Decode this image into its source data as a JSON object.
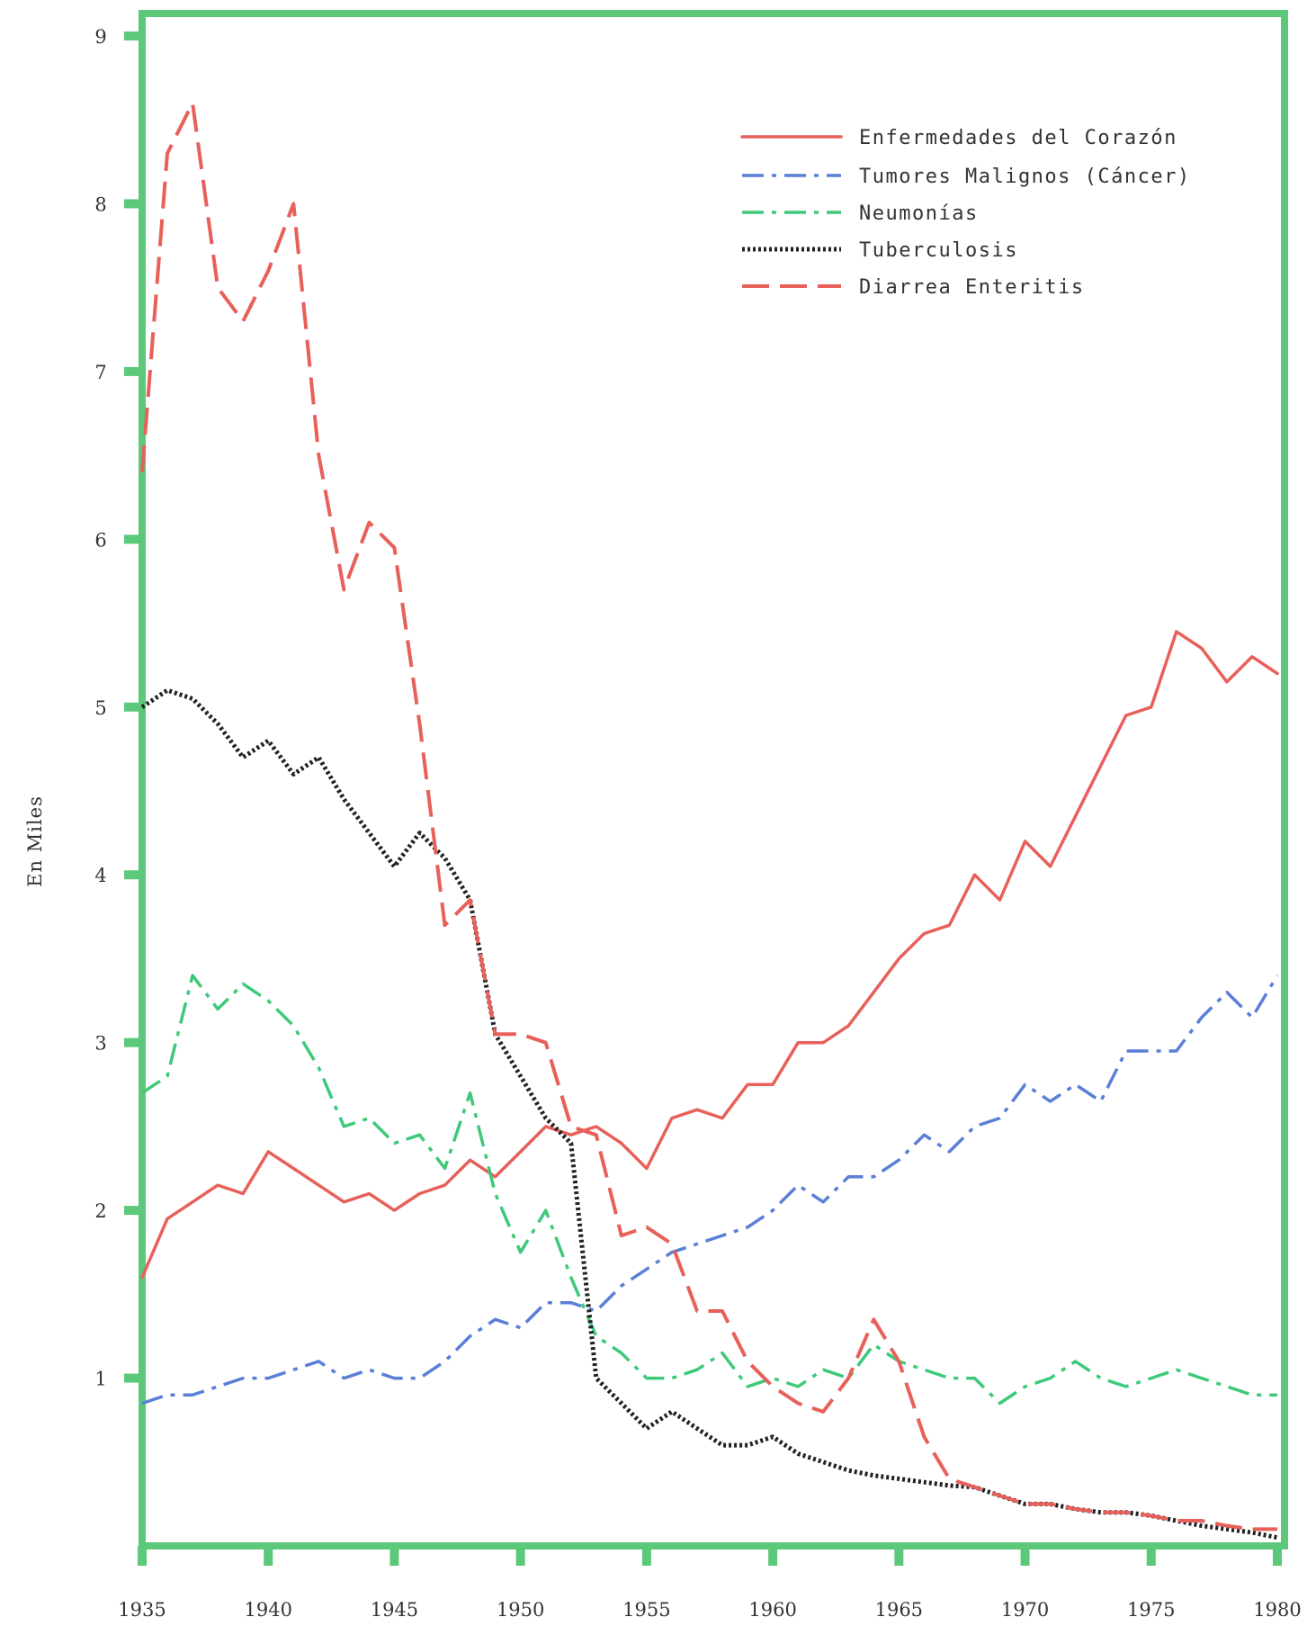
{
  "chart_data": {
    "type": "line",
    "ylabel": "En Miles",
    "xlim": [
      1935,
      1980
    ],
    "ylim": [
      0,
      9
    ],
    "x_ticks": [
      1935,
      1940,
      1945,
      1950,
      1955,
      1960,
      1965,
      1970,
      1975,
      1980
    ],
    "y_ticks": [
      1,
      2,
      3,
      4,
      5,
      6,
      7,
      8,
      9
    ],
    "frame_color": "#5cc87a",
    "legend_position": "top-right",
    "series": [
      {
        "name": "Enfermedades del Corazón",
        "color": "#e8605a",
        "style": "solid",
        "x": [
          1935,
          1936,
          1937,
          1938,
          1939,
          1940,
          1941,
          1942,
          1943,
          1944,
          1945,
          1946,
          1947,
          1948,
          1949,
          1950,
          1951,
          1952,
          1953,
          1954,
          1955,
          1956,
          1957,
          1958,
          1959,
          1960,
          1961,
          1962,
          1963,
          1964,
          1965,
          1966,
          1967,
          1968,
          1969,
          1970,
          1971,
          1972,
          1973,
          1974,
          1975,
          1976,
          1977,
          1978,
          1979,
          1980
        ],
        "values": [
          1.6,
          1.95,
          2.05,
          2.15,
          2.1,
          2.35,
          2.25,
          2.15,
          2.05,
          2.1,
          2.0,
          2.1,
          2.15,
          2.3,
          2.2,
          2.35,
          2.5,
          2.45,
          2.5,
          2.4,
          2.25,
          2.55,
          2.6,
          2.55,
          2.75,
          2.75,
          3.0,
          3.0,
          3.1,
          3.3,
          3.5,
          3.65,
          3.7,
          4.0,
          3.85,
          4.2,
          4.05,
          4.35,
          4.65,
          4.95,
          5.0,
          5.45,
          5.35,
          5.15,
          5.3,
          5.2
        ]
      },
      {
        "name": "Tumores Malignos (Cáncer)",
        "color": "#5a7fd6",
        "style": "dashdot",
        "x": [
          1935,
          1936,
          1937,
          1938,
          1939,
          1940,
          1941,
          1942,
          1943,
          1944,
          1945,
          1946,
          1947,
          1948,
          1949,
          1950,
          1951,
          1952,
          1953,
          1954,
          1955,
          1956,
          1957,
          1958,
          1959,
          1960,
          1961,
          1962,
          1963,
          1964,
          1965,
          1966,
          1967,
          1968,
          1969,
          1970,
          1971,
          1972,
          1973,
          1974,
          1975,
          1976,
          1977,
          1978,
          1979,
          1980
        ],
        "values": [
          0.85,
          0.9,
          0.9,
          0.95,
          1.0,
          1.0,
          1.05,
          1.1,
          1.0,
          1.05,
          1.0,
          1.0,
          1.1,
          1.25,
          1.35,
          1.3,
          1.45,
          1.45,
          1.4,
          1.55,
          1.65,
          1.75,
          1.8,
          1.85,
          1.9,
          2.0,
          2.15,
          2.05,
          2.2,
          2.2,
          2.3,
          2.45,
          2.35,
          2.5,
          2.55,
          2.75,
          2.65,
          2.75,
          2.65,
          2.95,
          2.95,
          2.95,
          3.15,
          3.3,
          3.15,
          3.4
        ]
      },
      {
        "name": "Neumonías",
        "color": "#3ec97a",
        "style": "dashdot",
        "x": [
          1935,
          1936,
          1937,
          1938,
          1939,
          1940,
          1941,
          1942,
          1943,
          1944,
          1945,
          1946,
          1947,
          1948,
          1949,
          1950,
          1951,
          1952,
          1953,
          1954,
          1955,
          1956,
          1957,
          1958,
          1959,
          1960,
          1961,
          1962,
          1963,
          1964,
          1965,
          1966,
          1967,
          1968,
          1969,
          1970,
          1971,
          1972,
          1973,
          1974,
          1975,
          1976,
          1977,
          1978,
          1979,
          1980
        ],
        "values": [
          2.7,
          2.8,
          3.4,
          3.2,
          3.35,
          3.25,
          3.1,
          2.85,
          2.5,
          2.55,
          2.4,
          2.45,
          2.25,
          2.7,
          2.1,
          1.75,
          2.0,
          1.6,
          1.25,
          1.15,
          1.0,
          1.0,
          1.05,
          1.15,
          0.95,
          1.0,
          0.95,
          1.05,
          1.0,
          1.2,
          1.1,
          1.05,
          1.0,
          1.0,
          0.85,
          0.95,
          1.0,
          1.1,
          1.0,
          0.95,
          1.0,
          1.05,
          1.0,
          0.95,
          0.9,
          0.9
        ]
      },
      {
        "name": "Tuberculosis",
        "color": "#222222",
        "style": "dotted",
        "x": [
          1935,
          1936,
          1937,
          1938,
          1939,
          1940,
          1941,
          1942,
          1943,
          1944,
          1945,
          1946,
          1947,
          1948,
          1949,
          1950,
          1951,
          1952,
          1953,
          1954,
          1955,
          1956,
          1957,
          1958,
          1959,
          1960,
          1961,
          1962,
          1963,
          1964,
          1965,
          1966,
          1967,
          1968,
          1969,
          1970,
          1971,
          1972,
          1973,
          1974,
          1975,
          1976,
          1977,
          1978,
          1979,
          1980
        ],
        "values": [
          5.0,
          5.1,
          5.05,
          4.9,
          4.7,
          4.8,
          4.6,
          4.7,
          4.45,
          4.25,
          4.05,
          4.25,
          4.1,
          3.85,
          3.05,
          2.8,
          2.55,
          2.4,
          1.0,
          0.85,
          0.7,
          0.8,
          0.7,
          0.6,
          0.6,
          0.65,
          0.55,
          0.5,
          0.45,
          0.42,
          0.4,
          0.38,
          0.36,
          0.35,
          0.3,
          0.25,
          0.25,
          0.22,
          0.2,
          0.2,
          0.18,
          0.15,
          0.12,
          0.1,
          0.08,
          0.05
        ]
      },
      {
        "name": "Diarrea Enteritis",
        "color": "#e8605a",
        "style": "dashed",
        "x": [
          1935,
          1936,
          1937,
          1938,
          1939,
          1940,
          1941,
          1942,
          1943,
          1944,
          1945,
          1946,
          1947,
          1948,
          1949,
          1950,
          1951,
          1952,
          1953,
          1954,
          1955,
          1956,
          1957,
          1958,
          1959,
          1960,
          1961,
          1962,
          1963,
          1964,
          1965,
          1966,
          1967,
          1968,
          1969,
          1970,
          1971,
          1972,
          1973,
          1974,
          1975,
          1976,
          1977,
          1978,
          1979,
          1980
        ],
        "values": [
          6.4,
          8.3,
          8.6,
          7.5,
          7.3,
          7.6,
          8.0,
          6.5,
          5.7,
          6.1,
          5.95,
          4.9,
          3.7,
          3.85,
          3.05,
          3.05,
          3.0,
          2.5,
          2.45,
          1.85,
          1.9,
          1.8,
          1.4,
          1.4,
          1.1,
          0.95,
          0.85,
          0.8,
          1.0,
          1.35,
          1.1,
          0.65,
          0.4,
          0.35,
          0.3,
          0.25,
          0.25,
          0.22,
          0.2,
          0.2,
          0.18,
          0.15,
          0.15,
          0.12,
          0.1,
          0.1
        ]
      }
    ]
  }
}
